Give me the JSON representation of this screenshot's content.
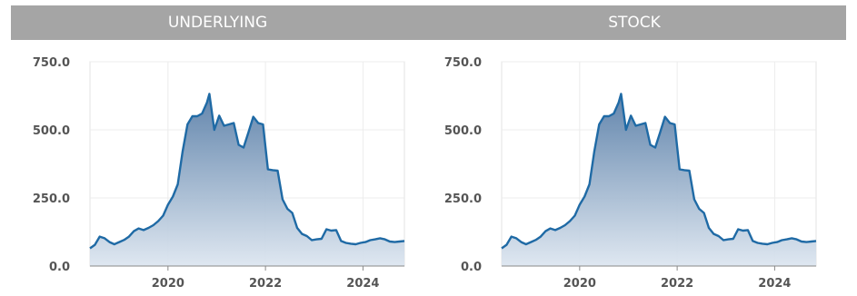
{
  "chart_data": [
    {
      "type": "area",
      "panel_title": "UNDERLYING",
      "xlabel": "",
      "ylabel": "",
      "xlim": [
        2018.4,
        2024.85
      ],
      "ylim": [
        0,
        750
      ],
      "yticks": [
        "0.0",
        "250.0",
        "500.0",
        "750.0"
      ],
      "xticks": [
        "2020",
        "2022",
        "2024"
      ],
      "grid": true,
      "color": "#1f6aa5",
      "series": [
        {
          "x": [
            2018.4,
            2018.5,
            2018.6,
            2018.7,
            2018.8,
            2018.9,
            2019.0,
            2019.1,
            2019.2,
            2019.3,
            2019.4,
            2019.5,
            2019.6,
            2019.7,
            2019.8,
            2019.9,
            2020.0,
            2020.1,
            2020.2,
            2020.3,
            2020.4,
            2020.5,
            2020.6,
            2020.7,
            2020.8,
            2020.85,
            2020.95,
            2021.05,
            2021.15,
            2021.25,
            2021.35,
            2021.45,
            2021.55,
            2021.65,
            2021.75,
            2021.85,
            2021.95,
            2022.05,
            2022.15,
            2022.25,
            2022.35,
            2022.45,
            2022.55,
            2022.65,
            2022.75,
            2022.85,
            2022.95,
            2023.05,
            2023.15,
            2023.25,
            2023.35,
            2023.45,
            2023.55,
            2023.65,
            2023.75,
            2023.85,
            2023.95,
            2024.05,
            2024.15,
            2024.25,
            2024.35,
            2024.45,
            2024.55,
            2024.65,
            2024.75,
            2024.85
          ],
          "values": [
            65,
            78,
            108,
            102,
            88,
            80,
            88,
            96,
            108,
            128,
            138,
            132,
            140,
            150,
            165,
            185,
            225,
            255,
            300,
            420,
            520,
            550,
            550,
            560,
            600,
            632,
            500,
            552,
            515,
            520,
            525,
            445,
            435,
            490,
            548,
            525,
            520,
            355,
            352,
            350,
            245,
            210,
            195,
            140,
            118,
            110,
            95,
            98,
            100,
            135,
            130,
            132,
            92,
            85,
            82,
            80,
            85,
            88,
            95,
            98,
            102,
            98,
            90,
            88,
            90,
            92
          ]
        }
      ]
    },
    {
      "type": "area",
      "panel_title": "STOCK",
      "xlabel": "",
      "ylabel": "",
      "xlim": [
        2018.4,
        2024.85
      ],
      "ylim": [
        0,
        750
      ],
      "yticks": [
        "0.0",
        "250.0",
        "500.0",
        "750.0"
      ],
      "xticks": [
        "2020",
        "2022",
        "2024"
      ],
      "grid": true,
      "color": "#1f6aa5",
      "series": [
        {
          "x": [
            2018.4,
            2018.5,
            2018.6,
            2018.7,
            2018.8,
            2018.9,
            2019.0,
            2019.1,
            2019.2,
            2019.3,
            2019.4,
            2019.5,
            2019.6,
            2019.7,
            2019.8,
            2019.9,
            2020.0,
            2020.1,
            2020.2,
            2020.3,
            2020.4,
            2020.5,
            2020.6,
            2020.7,
            2020.8,
            2020.85,
            2020.95,
            2021.05,
            2021.15,
            2021.25,
            2021.35,
            2021.45,
            2021.55,
            2021.65,
            2021.75,
            2021.85,
            2021.95,
            2022.05,
            2022.15,
            2022.25,
            2022.35,
            2022.45,
            2022.55,
            2022.65,
            2022.75,
            2022.85,
            2022.95,
            2023.05,
            2023.15,
            2023.25,
            2023.35,
            2023.45,
            2023.55,
            2023.65,
            2023.75,
            2023.85,
            2023.95,
            2024.05,
            2024.15,
            2024.25,
            2024.35,
            2024.45,
            2024.55,
            2024.65,
            2024.75,
            2024.85
          ],
          "values": [
            65,
            78,
            108,
            102,
            88,
            80,
            88,
            96,
            108,
            128,
            138,
            132,
            140,
            150,
            165,
            185,
            225,
            255,
            300,
            420,
            520,
            550,
            550,
            560,
            600,
            632,
            500,
            552,
            515,
            520,
            525,
            445,
            435,
            490,
            548,
            525,
            520,
            355,
            352,
            350,
            245,
            210,
            195,
            140,
            118,
            110,
            95,
            98,
            100,
            135,
            130,
            132,
            92,
            85,
            82,
            80,
            85,
            88,
            95,
            98,
            102,
            98,
            90,
            88,
            90,
            92
          ]
        }
      ]
    }
  ]
}
